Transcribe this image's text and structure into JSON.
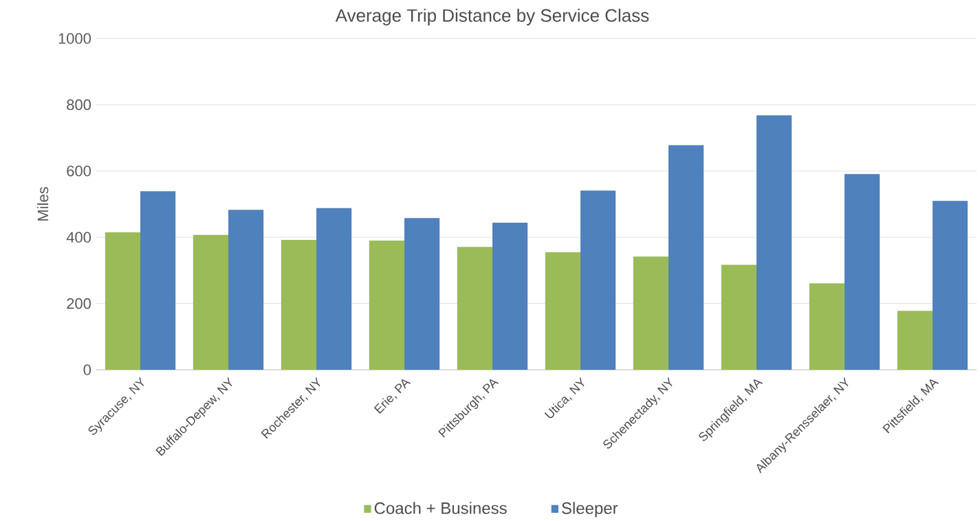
{
  "chart_data": {
    "type": "bar",
    "title": "Average Trip Distance by Service Class",
    "ylabel": "Miles",
    "categories": [
      "Syracuse, NY",
      "Buffalo-Depew, NY",
      "Rochester, NY",
      "Erie, PA",
      "Pittsburgh, PA",
      "Utica, NY",
      "Schenectady, NY",
      "Springfield, MA",
      "Albany-Rensselaer, NY",
      "Pittsfield, MA"
    ],
    "series": [
      {
        "name": "Coach + Business",
        "color": "#9bbb59",
        "values": [
          415,
          407,
          392,
          390,
          371,
          355,
          342,
          317,
          261,
          178
        ]
      },
      {
        "name": "Sleeper",
        "color": "#4f81bd",
        "values": [
          539,
          483,
          488,
          458,
          444,
          541,
          678,
          768,
          591,
          510
        ]
      }
    ],
    "ylim": [
      0,
      1000
    ],
    "yticks": [
      0,
      200,
      400,
      600,
      800,
      1000
    ],
    "grid": "y",
    "legend": "bottom"
  }
}
